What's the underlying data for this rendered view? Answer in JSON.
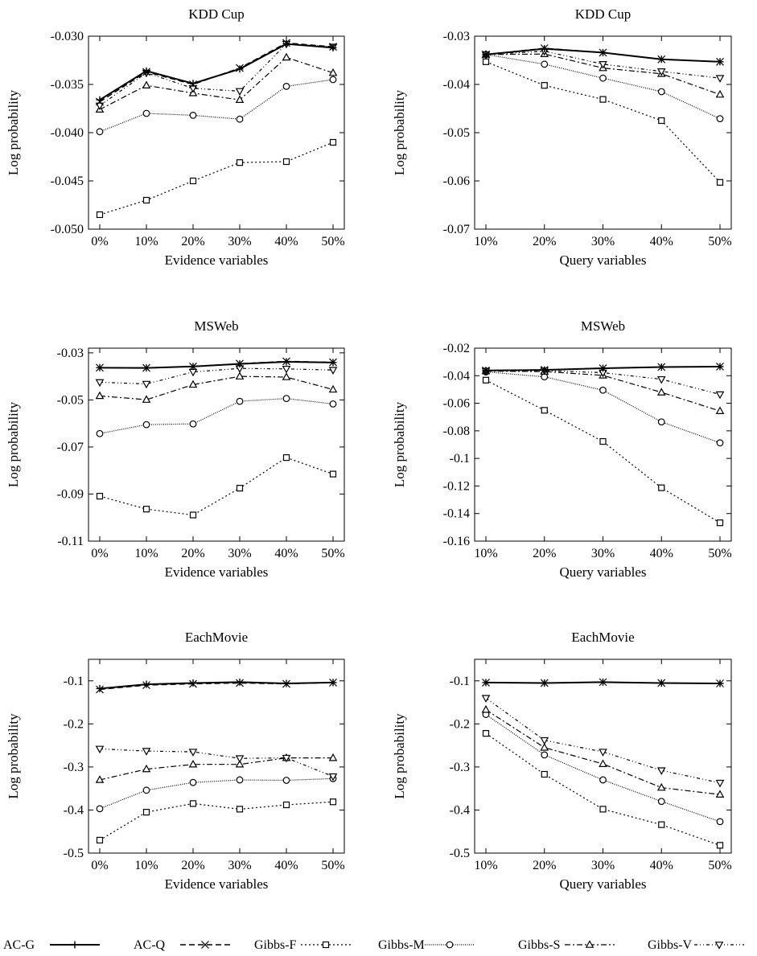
{
  "series_styles": {
    "AC-G": {
      "dash": "",
      "marker": "plus",
      "width": 2
    },
    "AC-Q": {
      "dash": "7,4",
      "marker": "x",
      "width": 1.4
    },
    "Gibbs-F": {
      "dash": "2,3",
      "marker": "square",
      "width": 1.2
    },
    "Gibbs-M": {
      "dash": "1,1.5",
      "marker": "circle",
      "width": 1.2
    },
    "Gibbs-S": {
      "dash": "7,3,2,3",
      "marker": "triangle-up",
      "width": 1.2
    },
    "Gibbs-V": {
      "dash": "4,3,1,3,1,3",
      "marker": "triangle-down",
      "width": 1.2
    }
  },
  "legend": {
    "entries": [
      "AC-G",
      "AC-Q",
      "Gibbs-F",
      "Gibbs-M",
      "Gibbs-S",
      "Gibbs-V"
    ],
    "placement": "bottom"
  },
  "chart_data": [
    {
      "type": "line",
      "title": "KDD Cup",
      "xlabel": "Evidence variables",
      "ylabel": "Log probability",
      "categories": [
        "0%",
        "10%",
        "20%",
        "30%",
        "40%",
        "50%"
      ],
      "ylim": [
        -0.05,
        -0.03
      ],
      "yticks": [
        -0.05,
        -0.045,
        -0.04,
        -0.035,
        -0.03
      ],
      "ytick_labels": [
        "-0.050",
        "-0.045",
        "-0.040",
        "-0.035",
        "-0.030"
      ],
      "series": [
        {
          "name": "AC-G",
          "values": [
            -0.0366,
            -0.0336,
            -0.0349,
            -0.0334,
            -0.0308,
            -0.0312
          ]
        },
        {
          "name": "AC-Q",
          "values": [
            -0.0368,
            -0.0337,
            -0.035,
            -0.0333,
            -0.0307,
            -0.0311
          ]
        },
        {
          "name": "Gibbs-F",
          "values": [
            -0.0485,
            -0.047,
            -0.045,
            -0.0431,
            -0.043,
            -0.041
          ]
        },
        {
          "name": "Gibbs-M",
          "values": [
            -0.0399,
            -0.038,
            -0.0382,
            -0.0386,
            -0.0352,
            -0.0345
          ]
        },
        {
          "name": "Gibbs-S",
          "values": [
            -0.0376,
            -0.0351,
            -0.0359,
            -0.0366,
            -0.0322,
            -0.0338
          ]
        },
        {
          "name": "Gibbs-V",
          "values": [
            -0.0372,
            -0.0338,
            -0.0354,
            -0.0357,
            -0.0308,
            -0.0311
          ]
        }
      ]
    },
    {
      "type": "line",
      "title": "KDD Cup",
      "xlabel": "Query variables",
      "ylabel": "Log probability",
      "categories": [
        "10%",
        "20%",
        "30%",
        "40%",
        "50%"
      ],
      "ylim": [
        -0.07,
        -0.03
      ],
      "yticks": [
        -0.07,
        -0.06,
        -0.05,
        -0.04,
        -0.03
      ],
      "ytick_labels": [
        "-0.07",
        "-0.06",
        "-0.05",
        "-0.04",
        "-0.03"
      ],
      "series": [
        {
          "name": "AC-G",
          "values": [
            -0.0338,
            -0.0326,
            -0.0334,
            -0.0348,
            -0.0353
          ]
        },
        {
          "name": "AC-Q",
          "values": [
            -0.0338,
            -0.0325,
            -0.0334,
            -0.0348,
            -0.0353
          ]
        },
        {
          "name": "Gibbs-F",
          "values": [
            -0.0353,
            -0.0402,
            -0.0431,
            -0.0475,
            -0.0603
          ]
        },
        {
          "name": "Gibbs-M",
          "values": [
            -0.0338,
            -0.0358,
            -0.0387,
            -0.0415,
            -0.0471
          ]
        },
        {
          "name": "Gibbs-S",
          "values": [
            -0.0338,
            -0.0337,
            -0.0366,
            -0.0378,
            -0.0421
          ]
        },
        {
          "name": "Gibbs-V",
          "values": [
            -0.0338,
            -0.0331,
            -0.0358,
            -0.0373,
            -0.0387
          ]
        }
      ]
    },
    {
      "type": "line",
      "title": "MSWeb",
      "xlabel": "Evidence variables",
      "ylabel": "Log probability",
      "categories": [
        "0%",
        "10%",
        "20%",
        "30%",
        "40%",
        "50%"
      ],
      "ylim": [
        -0.11,
        -0.028
      ],
      "yticks": [
        -0.11,
        -0.09,
        -0.07,
        -0.05,
        -0.03
      ],
      "ytick_labels": [
        "-0.11",
        "-0.09",
        "-0.07",
        "-0.05",
        "-0.03"
      ],
      "series": [
        {
          "name": "AC-G",
          "values": [
            -0.0363,
            -0.0364,
            -0.0358,
            -0.0347,
            -0.0338,
            -0.0341
          ]
        },
        {
          "name": "AC-Q",
          "values": [
            -0.0363,
            -0.0364,
            -0.0358,
            -0.0346,
            -0.0336,
            -0.034
          ]
        },
        {
          "name": "Gibbs-F",
          "values": [
            -0.0909,
            -0.0964,
            -0.0989,
            -0.0875,
            -0.0745,
            -0.0815
          ]
        },
        {
          "name": "Gibbs-M",
          "values": [
            -0.0643,
            -0.0605,
            -0.0602,
            -0.0506,
            -0.0494,
            -0.0517
          ]
        },
        {
          "name": "Gibbs-S",
          "values": [
            -0.0483,
            -0.0499,
            -0.0435,
            -0.04,
            -0.0403,
            -0.0456
          ]
        },
        {
          "name": "Gibbs-V",
          "values": [
            -0.0425,
            -0.0432,
            -0.0381,
            -0.0366,
            -0.0368,
            -0.0373
          ]
        }
      ]
    },
    {
      "type": "line",
      "title": "MSWeb",
      "xlabel": "Query variables",
      "ylabel": "Log probability",
      "categories": [
        "10%",
        "20%",
        "30%",
        "40%",
        "50%"
      ],
      "ylim": [
        -0.16,
        -0.02
      ],
      "yticks": [
        -0.16,
        -0.14,
        -0.12,
        -0.1,
        -0.08,
        -0.06,
        -0.04,
        -0.02
      ],
      "ytick_labels": [
        "-0.16",
        "-0.14",
        "-0.12",
        "-0.1",
        "-0.08",
        "-0.06",
        "-0.04",
        "-0.02"
      ],
      "series": [
        {
          "name": "AC-G",
          "values": [
            -0.0362,
            -0.0358,
            -0.0346,
            -0.0337,
            -0.0334
          ]
        },
        {
          "name": "AC-Q",
          "values": [
            -0.0362,
            -0.0357,
            -0.0346,
            -0.0337,
            -0.0334
          ]
        },
        {
          "name": "Gibbs-F",
          "values": [
            -0.0432,
            -0.0651,
            -0.0877,
            -0.1213,
            -0.1467
          ]
        },
        {
          "name": "Gibbs-M",
          "values": [
            -0.0372,
            -0.0408,
            -0.0505,
            -0.0735,
            -0.0887
          ]
        },
        {
          "name": "Gibbs-S",
          "values": [
            -0.0367,
            -0.037,
            -0.0398,
            -0.0521,
            -0.0656
          ]
        },
        {
          "name": "Gibbs-V",
          "values": [
            -0.0365,
            -0.0363,
            -0.0378,
            -0.0426,
            -0.0536
          ]
        }
      ]
    },
    {
      "type": "line",
      "title": "EachMovie",
      "xlabel": "Evidence variables",
      "ylabel": "Log probability",
      "categories": [
        "0%",
        "10%",
        "20%",
        "30%",
        "40%",
        "50%"
      ],
      "ylim": [
        -0.5,
        -0.05
      ],
      "yticks": [
        -0.5,
        -0.4,
        -0.3,
        -0.2,
        -0.1
      ],
      "ytick_labels": [
        "-0.5",
        "-0.4",
        "-0.3",
        "-0.2",
        "-0.1"
      ],
      "series": [
        {
          "name": "AC-G",
          "values": [
            -0.118,
            -0.108,
            -0.105,
            -0.103,
            -0.106,
            -0.104
          ]
        },
        {
          "name": "AC-Q",
          "values": [
            -0.12,
            -0.11,
            -0.107,
            -0.105,
            -0.107,
            -0.104
          ]
        },
        {
          "name": "Gibbs-F",
          "values": [
            -0.47,
            -0.405,
            -0.385,
            -0.398,
            -0.388,
            -0.381
          ]
        },
        {
          "name": "Gibbs-M",
          "values": [
            -0.397,
            -0.354,
            -0.336,
            -0.33,
            -0.331,
            -0.327
          ]
        },
        {
          "name": "Gibbs-S",
          "values": [
            -0.33,
            -0.305,
            -0.294,
            -0.294,
            -0.279,
            -0.279
          ]
        },
        {
          "name": "Gibbs-V",
          "values": [
            -0.258,
            -0.263,
            -0.265,
            -0.28,
            -0.279,
            -0.322
          ]
        }
      ]
    },
    {
      "type": "line",
      "title": "EachMovie",
      "xlabel": "Query variables",
      "ylabel": "Log probability",
      "categories": [
        "10%",
        "20%",
        "30%",
        "40%",
        "50%"
      ],
      "ylim": [
        -0.5,
        -0.05
      ],
      "yticks": [
        -0.5,
        -0.4,
        -0.3,
        -0.2,
        -0.1
      ],
      "ytick_labels": [
        "-0.5",
        "-0.4",
        "-0.3",
        "-0.2",
        "-0.1"
      ],
      "series": [
        {
          "name": "AC-G",
          "values": [
            -0.104,
            -0.105,
            -0.103,
            -0.105,
            -0.106
          ]
        },
        {
          "name": "AC-Q",
          "values": [
            -0.104,
            -0.105,
            -0.103,
            -0.105,
            -0.106
          ]
        },
        {
          "name": "Gibbs-F",
          "values": [
            -0.222,
            -0.317,
            -0.398,
            -0.434,
            -0.482
          ]
        },
        {
          "name": "Gibbs-M",
          "values": [
            -0.178,
            -0.272,
            -0.33,
            -0.38,
            -0.427
          ]
        },
        {
          "name": "Gibbs-S",
          "values": [
            -0.167,
            -0.255,
            -0.293,
            -0.348,
            -0.364
          ]
        },
        {
          "name": "Gibbs-V",
          "values": [
            -0.14,
            -0.238,
            -0.265,
            -0.308,
            -0.337
          ]
        }
      ]
    }
  ]
}
